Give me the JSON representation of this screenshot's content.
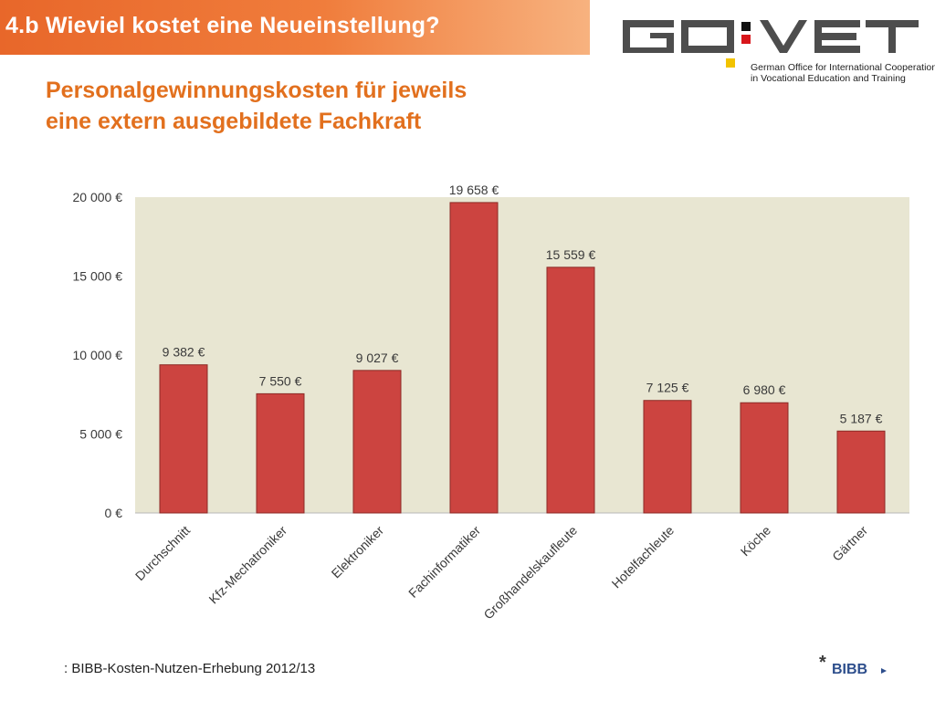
{
  "header": {
    "title": "4.b Wieviel kostet eine Neueinstellung?"
  },
  "logo": {
    "name": "GO:VET",
    "tagline_line1": "German Office for International Cooperation",
    "tagline_line2": "in Vocational Education and Training"
  },
  "subtitle": {
    "line1": "Personalgewinnungskosten für jeweils",
    "line2": "eine extern ausgebildete Fachkraft"
  },
  "chart_data": {
    "type": "bar",
    "title": "",
    "xlabel": "",
    "ylabel": "",
    "ylim": [
      0,
      20000
    ],
    "yticks": [
      0,
      5000,
      10000,
      15000,
      20000
    ],
    "ytick_labels": [
      "0 €",
      "5 000 €",
      "10 000 €",
      "15 000 €",
      "20 000 €"
    ],
    "categories": [
      "Durchschnitt",
      "Kfz-Mechatroniker",
      "Elektroniker",
      "Fachinformatiker",
      "Großhandelskaufleute",
      "Hotelfachleute",
      "Köche",
      "Gärtner"
    ],
    "values": [
      9382,
      7550,
      9027,
      19658,
      15559,
      7125,
      6980,
      5187
    ],
    "data_labels": [
      "9 382 €",
      "7 550 €",
      "9 027 €",
      "19 658 €",
      "15 559 €",
      "7 125 €",
      "6 980 €",
      "5 187 €"
    ],
    "grid": false,
    "legend": "none",
    "colors": {
      "bar": "#cc4440",
      "bar_border": "#8c2a26",
      "plot_background": "#e8e6d2"
    }
  },
  "footer": {
    "source": ": BIBB-Kosten-Nutzen-Erhebung 2012/13",
    "asterisk": "*",
    "bibb_logo": "BIBB"
  },
  "colors": {
    "accent_orange": "#e2701e",
    "banner_orange": "#e8672a"
  }
}
